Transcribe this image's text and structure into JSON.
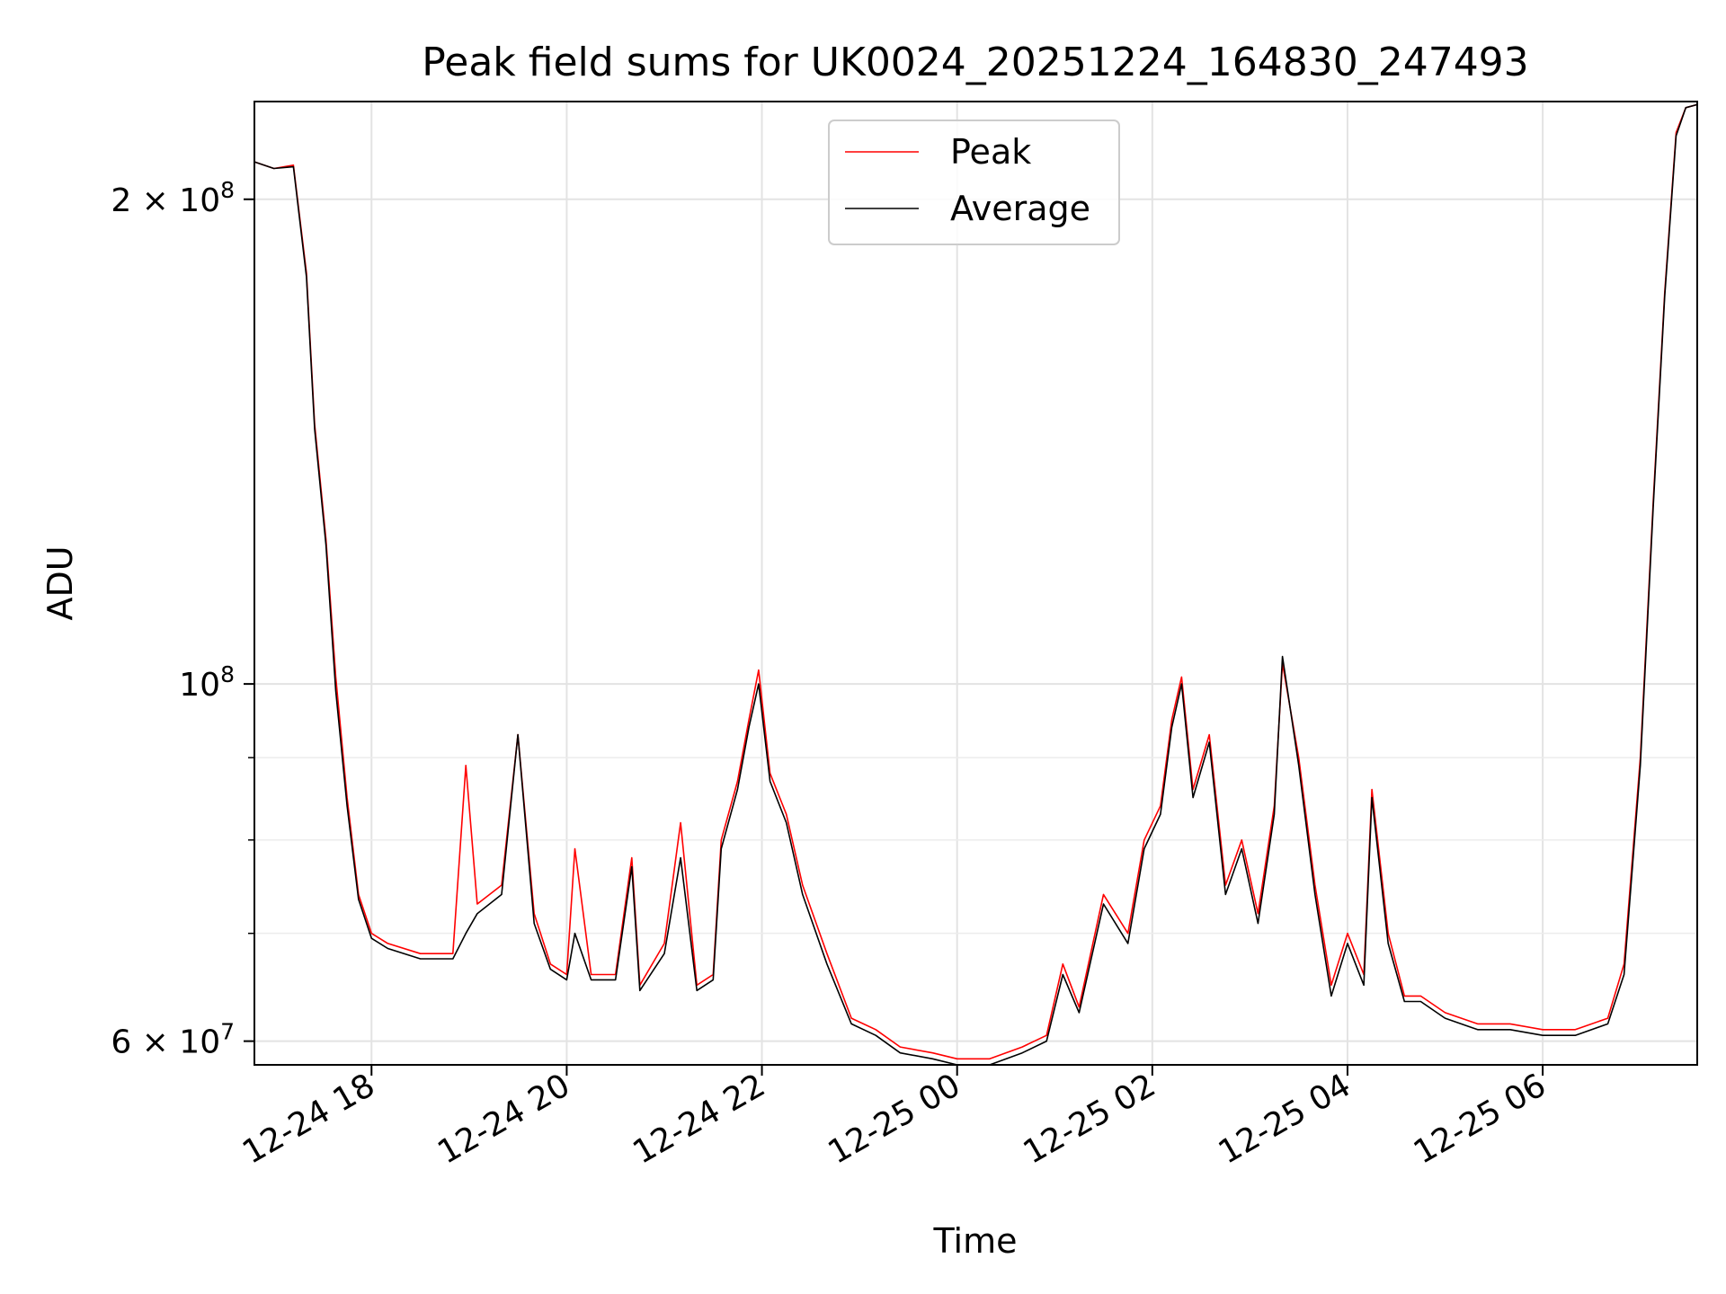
{
  "chart_data": {
    "type": "line",
    "title": "Peak field sums for UK0024_20251224_164830_247493",
    "xlabel": "Time",
    "ylabel": "ADU",
    "x_range": [
      "2025-12-24 16:48",
      "2025-12-25 07:35"
    ],
    "y_range": [
      58000000,
      230000000
    ],
    "y_scale": "log",
    "grid": true,
    "legend_position": "upper center",
    "x_ticks": [
      "12-24 18",
      "12-24 20",
      "12-24 22",
      "12-25 00",
      "12-25 02",
      "12-25 04",
      "12-25 06"
    ],
    "y_ticks": [
      {
        "value": 60000000,
        "label": "6 × 10^7",
        "mantissa": "6",
        "exp": "7"
      },
      {
        "value": 100000000,
        "label": "10^8",
        "mantissa": "",
        "exp": "8"
      },
      {
        "value": 200000000,
        "label": "2 × 10^8",
        "mantissa": "2",
        "exp": "8"
      }
    ],
    "y_minor_ticks": [
      70000000,
      80000000,
      90000000
    ],
    "series": [
      {
        "name": "Peak",
        "color": "#ff0000",
        "points": [
          [
            "2025-12-24 16:48",
            211000000
          ],
          [
            "2025-12-24 17:00",
            209000000
          ],
          [
            "2025-12-24 17:12",
            210000000
          ],
          [
            "2025-12-24 17:20",
            180000000
          ],
          [
            "2025-12-24 17:25",
            145000000
          ],
          [
            "2025-12-24 17:32",
            123000000
          ],
          [
            "2025-12-24 17:38",
            101000000
          ],
          [
            "2025-12-24 17:45",
            85000000
          ],
          [
            "2025-12-24 17:52",
            74000000
          ],
          [
            "2025-12-24 18:00",
            70000000
          ],
          [
            "2025-12-24 18:10",
            69000000
          ],
          [
            "2025-12-24 18:30",
            68000000
          ],
          [
            "2025-12-24 18:50",
            68000000
          ],
          [
            "2025-12-24 18:58",
            89000000
          ],
          [
            "2025-12-24 19:05",
            73000000
          ],
          [
            "2025-12-24 19:20",
            75000000
          ],
          [
            "2025-12-24 19:30",
            93000000
          ],
          [
            "2025-12-24 19:40",
            72000000
          ],
          [
            "2025-12-24 19:50",
            67000000
          ],
          [
            "2025-12-24 20:00",
            66000000
          ],
          [
            "2025-12-24 20:05",
            79000000
          ],
          [
            "2025-12-24 20:15",
            66000000
          ],
          [
            "2025-12-24 20:30",
            66000000
          ],
          [
            "2025-12-24 20:40",
            78000000
          ],
          [
            "2025-12-24 20:45",
            65000000
          ],
          [
            "2025-12-24 21:00",
            69000000
          ],
          [
            "2025-12-24 21:10",
            82000000
          ],
          [
            "2025-12-24 21:20",
            65000000
          ],
          [
            "2025-12-24 21:30",
            66000000
          ],
          [
            "2025-12-24 21:35",
            80000000
          ],
          [
            "2025-12-24 21:45",
            87000000
          ],
          [
            "2025-12-24 21:52",
            95000000
          ],
          [
            "2025-12-24 21:58",
            102000000
          ],
          [
            "2025-12-24 22:05",
            88000000
          ],
          [
            "2025-12-24 22:15",
            83000000
          ],
          [
            "2025-12-24 22:25",
            75000000
          ],
          [
            "2025-12-24 22:40",
            68000000
          ],
          [
            "2025-12-24 22:55",
            62000000
          ],
          [
            "2025-12-24 23:10",
            61000000
          ],
          [
            "2025-12-24 23:25",
            59500000
          ],
          [
            "2025-12-24 23:45",
            59000000
          ],
          [
            "2025-12-25 00:00",
            58500000
          ],
          [
            "2025-12-25 00:20",
            58500000
          ],
          [
            "2025-12-25 00:40",
            59500000
          ],
          [
            "2025-12-25 00:55",
            60500000
          ],
          [
            "2025-12-25 01:05",
            67000000
          ],
          [
            "2025-12-25 01:15",
            63000000
          ],
          [
            "2025-12-25 01:30",
            74000000
          ],
          [
            "2025-12-25 01:45",
            70000000
          ],
          [
            "2025-12-25 01:55",
            80000000
          ],
          [
            "2025-12-25 02:05",
            84000000
          ],
          [
            "2025-12-25 02:12",
            95000000
          ],
          [
            "2025-12-25 02:18",
            101000000
          ],
          [
            "2025-12-25 02:25",
            86000000
          ],
          [
            "2025-12-25 02:35",
            93000000
          ],
          [
            "2025-12-25 02:45",
            75000000
          ],
          [
            "2025-12-25 02:55",
            80000000
          ],
          [
            "2025-12-25 03:05",
            72000000
          ],
          [
            "2025-12-25 03:15",
            84000000
          ],
          [
            "2025-12-25 03:20",
            103000000
          ],
          [
            "2025-12-25 03:30",
            90000000
          ],
          [
            "2025-12-25 03:40",
            75000000
          ],
          [
            "2025-12-25 03:50",
            65000000
          ],
          [
            "2025-12-25 04:00",
            70000000
          ],
          [
            "2025-12-25 04:10",
            66000000
          ],
          [
            "2025-12-25 04:15",
            86000000
          ],
          [
            "2025-12-25 04:25",
            70000000
          ],
          [
            "2025-12-25 04:35",
            64000000
          ],
          [
            "2025-12-25 04:45",
            64000000
          ],
          [
            "2025-12-25 05:00",
            62500000
          ],
          [
            "2025-12-25 05:20",
            61500000
          ],
          [
            "2025-12-25 05:40",
            61500000
          ],
          [
            "2025-12-25 06:00",
            61000000
          ],
          [
            "2025-12-25 06:20",
            61000000
          ],
          [
            "2025-12-25 06:40",
            62000000
          ],
          [
            "2025-12-25 06:50",
            67000000
          ],
          [
            "2025-12-25 07:00",
            90000000
          ],
          [
            "2025-12-25 07:08",
            130000000
          ],
          [
            "2025-12-25 07:15",
            175000000
          ],
          [
            "2025-12-25 07:22",
            220000000
          ],
          [
            "2025-12-25 07:28",
            228000000
          ],
          [
            "2025-12-25 07:35",
            229000000
          ]
        ]
      },
      {
        "name": "Average",
        "color": "#000000",
        "points": [
          [
            "2025-12-24 16:48",
            211000000
          ],
          [
            "2025-12-24 17:00",
            209000000
          ],
          [
            "2025-12-24 17:12",
            209500000
          ],
          [
            "2025-12-24 17:20",
            179000000
          ],
          [
            "2025-12-24 17:25",
            144000000
          ],
          [
            "2025-12-24 17:32",
            122000000
          ],
          [
            "2025-12-24 17:38",
            99000000
          ],
          [
            "2025-12-24 17:45",
            84000000
          ],
          [
            "2025-12-24 17:52",
            73500000
          ],
          [
            "2025-12-24 18:00",
            69500000
          ],
          [
            "2025-12-24 18:10",
            68500000
          ],
          [
            "2025-12-24 18:30",
            67500000
          ],
          [
            "2025-12-24 18:50",
            67500000
          ],
          [
            "2025-12-24 18:58",
            70000000
          ],
          [
            "2025-12-24 19:05",
            72000000
          ],
          [
            "2025-12-24 19:20",
            74000000
          ],
          [
            "2025-12-24 19:30",
            93000000
          ],
          [
            "2025-12-24 19:40",
            71000000
          ],
          [
            "2025-12-24 19:50",
            66500000
          ],
          [
            "2025-12-24 20:00",
            65500000
          ],
          [
            "2025-12-24 20:05",
            70000000
          ],
          [
            "2025-12-24 20:15",
            65500000
          ],
          [
            "2025-12-24 20:30",
            65500000
          ],
          [
            "2025-12-24 20:40",
            77000000
          ],
          [
            "2025-12-24 20:45",
            64500000
          ],
          [
            "2025-12-24 21:00",
            68000000
          ],
          [
            "2025-12-24 21:10",
            78000000
          ],
          [
            "2025-12-24 21:20",
            64500000
          ],
          [
            "2025-12-24 21:30",
            65500000
          ],
          [
            "2025-12-24 21:35",
            79000000
          ],
          [
            "2025-12-24 21:45",
            86000000
          ],
          [
            "2025-12-24 21:52",
            94000000
          ],
          [
            "2025-12-24 21:58",
            100000000
          ],
          [
            "2025-12-24 22:05",
            87000000
          ],
          [
            "2025-12-24 22:15",
            82000000
          ],
          [
            "2025-12-24 22:25",
            74000000
          ],
          [
            "2025-12-24 22:40",
            67000000
          ],
          [
            "2025-12-24 22:55",
            61500000
          ],
          [
            "2025-12-24 23:10",
            60500000
          ],
          [
            "2025-12-24 23:25",
            59000000
          ],
          [
            "2025-12-24 23:45",
            58500000
          ],
          [
            "2025-12-25 00:00",
            58000000
          ],
          [
            "2025-12-25 00:20",
            58000000
          ],
          [
            "2025-12-25 00:40",
            59000000
          ],
          [
            "2025-12-25 00:55",
            60000000
          ],
          [
            "2025-12-25 01:05",
            66000000
          ],
          [
            "2025-12-25 01:15",
            62500000
          ],
          [
            "2025-12-25 01:30",
            73000000
          ],
          [
            "2025-12-25 01:45",
            69000000
          ],
          [
            "2025-12-25 01:55",
            79000000
          ],
          [
            "2025-12-25 02:05",
            83000000
          ],
          [
            "2025-12-25 02:12",
            94000000
          ],
          [
            "2025-12-25 02:18",
            100000000
          ],
          [
            "2025-12-25 02:25",
            85000000
          ],
          [
            "2025-12-25 02:35",
            92000000
          ],
          [
            "2025-12-25 02:45",
            74000000
          ],
          [
            "2025-12-25 02:55",
            79000000
          ],
          [
            "2025-12-25 03:05",
            71000000
          ],
          [
            "2025-12-25 03:15",
            83000000
          ],
          [
            "2025-12-25 03:20",
            104000000
          ],
          [
            "2025-12-25 03:30",
            89000000
          ],
          [
            "2025-12-25 03:40",
            74000000
          ],
          [
            "2025-12-25 03:50",
            64000000
          ],
          [
            "2025-12-25 04:00",
            69000000
          ],
          [
            "2025-12-25 04:10",
            65000000
          ],
          [
            "2025-12-25 04:15",
            85000000
          ],
          [
            "2025-12-25 04:25",
            69000000
          ],
          [
            "2025-12-25 04:35",
            63500000
          ],
          [
            "2025-12-25 04:45",
            63500000
          ],
          [
            "2025-12-25 05:00",
            62000000
          ],
          [
            "2025-12-25 05:20",
            61000000
          ],
          [
            "2025-12-25 05:40",
            61000000
          ],
          [
            "2025-12-25 06:00",
            60500000
          ],
          [
            "2025-12-25 06:20",
            60500000
          ],
          [
            "2025-12-25 06:40",
            61500000
          ],
          [
            "2025-12-25 06:50",
            66000000
          ],
          [
            "2025-12-25 07:00",
            89000000
          ],
          [
            "2025-12-25 07:08",
            129000000
          ],
          [
            "2025-12-25 07:15",
            174000000
          ],
          [
            "2025-12-25 07:22",
            219000000
          ],
          [
            "2025-12-25 07:28",
            228000000
          ],
          [
            "2025-12-25 07:35",
            229000000
          ]
        ]
      }
    ]
  }
}
